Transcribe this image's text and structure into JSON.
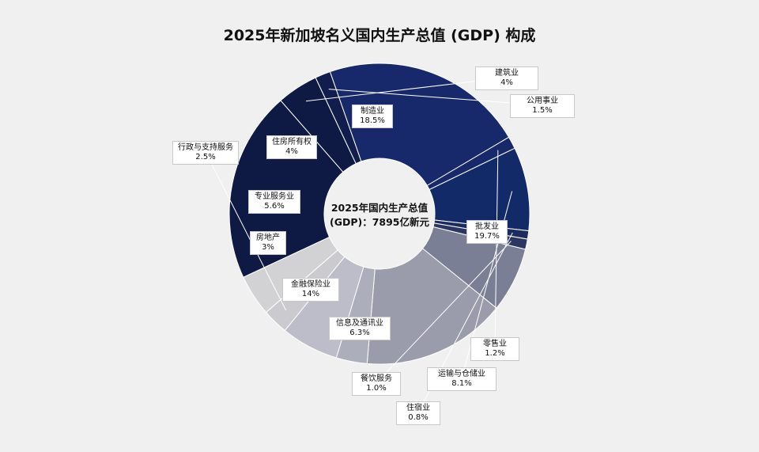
{
  "chart_data": {
    "type": "pie",
    "title": "2025年新加坡名义国内生产总值 (GDP) 构成",
    "center_label": [
      "2025年国内生产总值",
      "(GDP)：7895亿新元"
    ],
    "slices": [
      {
        "name": "制造业",
        "value": 18.5,
        "label": "18.5%",
        "color": "#0e1a44"
      },
      {
        "name": "建筑业",
        "value": 4,
        "label": "4%",
        "color": "#0e1a44"
      },
      {
        "name": "公用事业",
        "value": 1.5,
        "label": "1.5%",
        "color": "#101d4d"
      },
      {
        "name": "批发业",
        "value": 19.7,
        "label": "19.7%",
        "color": "#18296b"
      },
      {
        "name": "零售业",
        "value": 1.2,
        "label": "1.2%",
        "color": "#18296b"
      },
      {
        "name": "运输与仓储业",
        "value": 8.1,
        "label": "8.1%",
        "color": "#132a68"
      },
      {
        "name": "住宿业",
        "value": 0.8,
        "label": "0.8%",
        "color": "#1c2c60"
      },
      {
        "name": "餐饮服务",
        "value": 1.0,
        "label": "1.0%",
        "color": "#2b3762"
      },
      {
        "name": "信息及通讯业",
        "value": 6.3,
        "label": "6.3%",
        "color": "#7b7f95"
      },
      {
        "name": "金融保险业",
        "value": 14,
        "label": "14%",
        "color": "#9a9cab"
      },
      {
        "name": "房地产",
        "value": 3,
        "label": "3%",
        "color": "#acaebb"
      },
      {
        "name": "专业服务业",
        "value": 5.6,
        "label": "5.6%",
        "color": "#bcbdc9"
      },
      {
        "name": "行政与支持服务",
        "value": 2.5,
        "label": "2.5%",
        "color": "#cbcbcf"
      },
      {
        "name": "住房所有权",
        "value": 4,
        "label": "4%",
        "color": "#d2d2d4"
      }
    ]
  }
}
